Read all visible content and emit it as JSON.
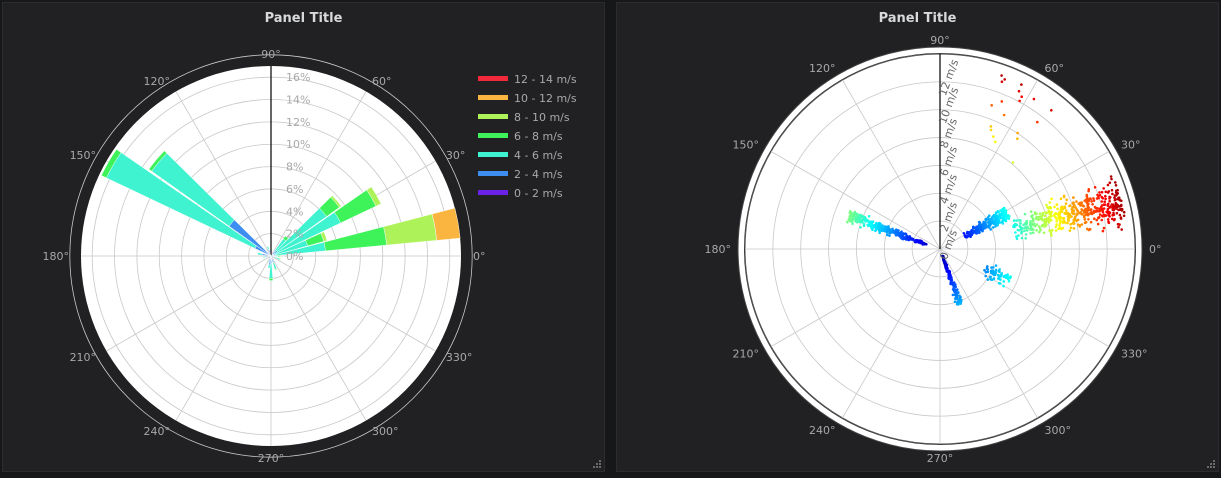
{
  "panels": [
    {
      "title": "Panel Title"
    },
    {
      "title": "Panel Title"
    }
  ],
  "colors": {
    "panel_bg": "#212124",
    "plot_bg": "#ffffff",
    "grid": "#c8c8c8",
    "axis_text": "#a8a8a8"
  },
  "chart_data": [
    {
      "type": "windrose",
      "angular_ticks": [
        "0°",
        "30°",
        "60°",
        "90°",
        "120°",
        "150°",
        "180°",
        "210°",
        "240°",
        "270°",
        "300°",
        "330°"
      ],
      "radial_ticks": [
        "0%",
        "2%",
        "4%",
        "6%",
        "8%",
        "10%",
        "12%",
        "14%",
        "16%"
      ],
      "rmax": 17,
      "legend_position": "right",
      "legend": [
        {
          "label": "12 - 14 m/s",
          "color": "#f2283b"
        },
        {
          "label": "10 - 12 m/s",
          "color": "#f9b53f"
        },
        {
          "label": "8 - 10 m/s",
          "color": "#aef25a"
        },
        {
          "label": "6 - 8 m/s",
          "color": "#3ef25a"
        },
        {
          "label": "4 - 6 m/s",
          "color": "#3ff2d0"
        },
        {
          "label": "2 - 4 m/s",
          "color": "#3d8ef0"
        },
        {
          "label": "0 - 2 m/s",
          "color": "#6a21e8"
        }
      ],
      "bins_order": [
        "0 - 2 m/s",
        "2 - 4 m/s",
        "4 - 6 m/s",
        "6 - 8 m/s",
        "8 - 10 m/s",
        "10 - 12 m/s",
        "12 - 14 m/s"
      ],
      "directions": [
        {
          "deg": 0,
          "values": [
            0.1,
            0.2,
            0.3,
            0.2,
            0.1,
            0,
            0
          ]
        },
        {
          "deg": 10,
          "values": [
            0.1,
            0.3,
            4.5,
            5.5,
            4.5,
            2.1,
            0
          ]
        },
        {
          "deg": 20,
          "values": [
            0.1,
            0.3,
            3.0,
            1.5,
            0.3,
            0,
            0
          ]
        },
        {
          "deg": 30,
          "values": [
            0.1,
            0.3,
            6.5,
            3.5,
            0.5,
            0,
            0
          ]
        },
        {
          "deg": 40,
          "values": [
            0.1,
            0.6,
            5.4,
            1.4,
            0.2,
            0,
            0
          ]
        },
        {
          "deg": 50,
          "values": [
            0.1,
            0.4,
            1.4,
            0.3,
            0,
            0,
            0
          ]
        },
        {
          "deg": 110,
          "values": [
            0.1,
            0.5,
            0.3,
            0,
            0,
            0,
            0
          ]
        },
        {
          "deg": 140,
          "values": [
            0.1,
            4.5,
            8.5,
            0.3,
            0,
            0,
            0
          ]
        },
        {
          "deg": 150,
          "values": [
            0.1,
            1.5,
            14.7,
            0.5,
            0,
            0,
            0
          ]
        },
        {
          "deg": 170,
          "values": [
            0.1,
            0.7,
            0.4,
            0,
            0,
            0,
            0
          ]
        },
        {
          "deg": 190,
          "values": [
            0.1,
            0.4,
            0.2,
            0,
            0,
            0,
            0
          ]
        },
        {
          "deg": 250,
          "values": [
            0.1,
            0.4,
            0.1,
            0,
            0,
            0,
            0
          ]
        },
        {
          "deg": 260,
          "values": [
            0.1,
            0.7,
            0.3,
            0,
            0,
            0,
            0
          ]
        },
        {
          "deg": 270,
          "values": [
            0.1,
            0.6,
            1.3,
            0.2,
            0,
            0,
            0
          ]
        },
        {
          "deg": 290,
          "values": [
            0.1,
            0.5,
            0.6,
            0.1,
            0,
            0,
            0
          ]
        },
        {
          "deg": 340,
          "values": [
            0.1,
            0.3,
            0.4,
            0.1,
            0,
            0,
            0
          ]
        }
      ]
    },
    {
      "type": "scatter",
      "coordinate_system": "polar",
      "angular_ticks": [
        "0°",
        "30°",
        "60°",
        "90°",
        "120°",
        "150°",
        "180°",
        "210°",
        "240°",
        "270°",
        "300°",
        "330°"
      ],
      "radial_ticks": [
        "0 m/s",
        "2 m/s",
        "4 m/s",
        "6 m/s",
        "8 m/s",
        "10 m/s",
        "12 m/s"
      ],
      "rmax": 14,
      "colorscale": "jet",
      "color_by": "speed",
      "point_count": 1200,
      "clusters": [
        {
          "dir_deg": 15,
          "dir_spread": 12,
          "speed_min": 5.5,
          "speed_max": 13.5,
          "count": 460
        },
        {
          "dir_deg": 160,
          "dir_spread": 7,
          "speed_min": 1.0,
          "speed_max": 7.0,
          "count": 300
        },
        {
          "dir_deg": 28,
          "dir_spread": 10,
          "speed_min": 2.0,
          "speed_max": 5.5,
          "count": 220
        },
        {
          "dir_deg": 290,
          "dir_spread": 7,
          "speed_min": 0.5,
          "speed_max": 4.2,
          "count": 130
        },
        {
          "dir_deg": 335,
          "dir_spread": 10,
          "speed_min": 3.5,
          "speed_max": 5.5,
          "count": 70
        },
        {
          "dir_deg": 65,
          "dir_spread": 22,
          "speed_min": 8.0,
          "speed_max": 13.5,
          "count": 20
        }
      ]
    }
  ]
}
